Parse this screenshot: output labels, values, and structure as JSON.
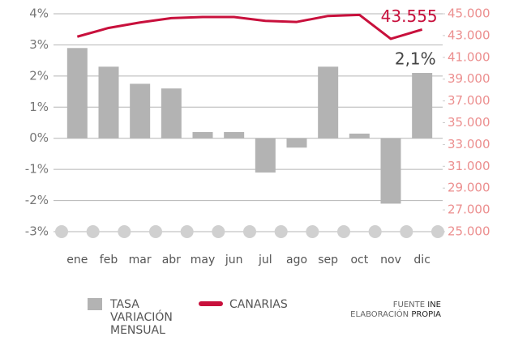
{
  "chart_data": {
    "type": "bar",
    "categories": [
      "ene",
      "feb",
      "mar",
      "abr",
      "may",
      "jun",
      "jul",
      "ago",
      "sep",
      "oct",
      "nov",
      "dic"
    ],
    "series": [
      {
        "name": "TASA VARIACIÓN MENSUAL",
        "type": "bar",
        "color": "#b3b3b3",
        "values": [
          2.9,
          2.3,
          1.75,
          1.6,
          0.2,
          0.2,
          -1.1,
          -0.3,
          2.3,
          0.15,
          -2.1,
          2.1
        ],
        "value_labels": [
          null,
          null,
          null,
          null,
          null,
          null,
          null,
          null,
          null,
          null,
          null,
          "2,1%"
        ]
      },
      {
        "name": "CANARIAS",
        "type": "line",
        "axis": "y2",
        "color": "#c8103c",
        "values": [
          42900,
          43700,
          44200,
          44600,
          44700,
          44700,
          44350,
          44250,
          44800,
          44900,
          42700,
          43555
        ],
        "value_labels": [
          null,
          null,
          null,
          null,
          null,
          null,
          null,
          null,
          null,
          null,
          null,
          "43.555"
        ]
      }
    ],
    "ylim": [
      -3,
      4
    ],
    "yticks": [
      {
        "value": -3,
        "label": "-3%"
      },
      {
        "value": -2,
        "label": "-2%"
      },
      {
        "value": -1,
        "label": "-1%"
      },
      {
        "value": 0,
        "label": "0%"
      },
      {
        "value": 1,
        "label": "1%"
      },
      {
        "value": 2,
        "label": "2%"
      },
      {
        "value": 3,
        "label": "3%"
      },
      {
        "value": 4,
        "label": "4%"
      }
    ],
    "y2lim": [
      25000,
      45000
    ],
    "y2ticks": [
      {
        "value": 25000,
        "label": "25.000"
      },
      {
        "value": 27000,
        "label": "27.000"
      },
      {
        "value": 29000,
        "label": "29.000"
      },
      {
        "value": 31000,
        "label": "31.000"
      },
      {
        "value": 33000,
        "label": "33.000"
      },
      {
        "value": 35000,
        "label": "35.000"
      },
      {
        "value": 37000,
        "label": "37.000"
      },
      {
        "value": 39000,
        "label": "39.000"
      },
      {
        "value": 41000,
        "label": "41.000"
      },
      {
        "value": 43000,
        "label": "43.000"
      },
      {
        "value": 45000,
        "label": "45.000"
      }
    ],
    "grid": true,
    "source": {
      "prefix": "FUENTE",
      "name": "INE",
      "line2_prefix": "ELABORACIÓN",
      "line2_name": "PROPIA"
    }
  }
}
